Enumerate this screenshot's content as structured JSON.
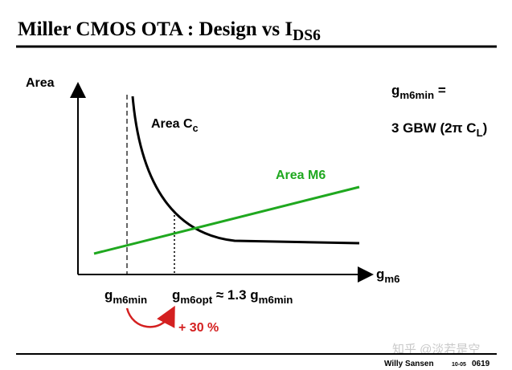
{
  "header": {
    "title": "Miller CMOS OTA : Design vs I",
    "title_sub": "DS6"
  },
  "axes": {
    "y_label": "Area",
    "x_label": "g",
    "x_label_sub": "m6"
  },
  "curves": {
    "cc_label": "Area C",
    "cc_label_sub": "c",
    "m6_label": "Area M6"
  },
  "formula": {
    "line1": "g",
    "line1_sub": "m6min",
    "line1_end": " =",
    "line2": "3 GBW (2π C",
    "line2_sub": "L",
    "line2_end": ")"
  },
  "markers": {
    "min": "g",
    "min_sub": "m6min",
    "opt": "g",
    "opt_sub": "m6opt",
    "opt_rel": " ≈ 1.3 g",
    "opt_rel_sub": "m6min",
    "gain": "+ 30 %"
  },
  "footer": {
    "watermark": "知乎 @淡若是空",
    "author": "Willy Sansen",
    "date": "10-05",
    "page": "0619"
  }
}
